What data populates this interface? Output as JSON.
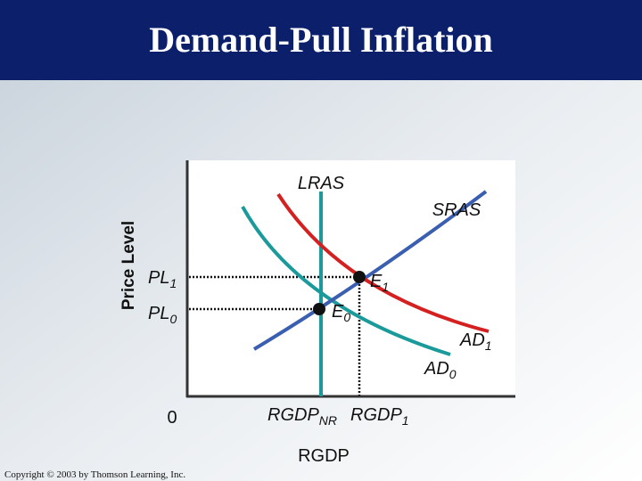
{
  "header": {
    "title": "Demand-Pull Inflation"
  },
  "diagram": {
    "y_axis_label": "Price Level",
    "x_axis_label": "RGDP",
    "origin_label": "0",
    "curves": {
      "lras": "LRAS",
      "sras": "SRAS",
      "ad1": {
        "main": "AD",
        "sub": "1"
      },
      "ad0": {
        "main": "AD",
        "sub": "0"
      }
    },
    "price_levels": [
      {
        "main": "PL",
        "sub": "1"
      },
      {
        "main": "PL",
        "sub": "0"
      }
    ],
    "equilibria": [
      {
        "main": "E",
        "sub": "1"
      },
      {
        "main": "E",
        "sub": "0"
      }
    ],
    "outputs": [
      {
        "main": "RGDP",
        "sub": "NR"
      },
      {
        "main": "RGDP",
        "sub": "1"
      }
    ]
  },
  "footer": {
    "copyright": "Copyright © 2003 by Thomson Learning, Inc."
  }
}
